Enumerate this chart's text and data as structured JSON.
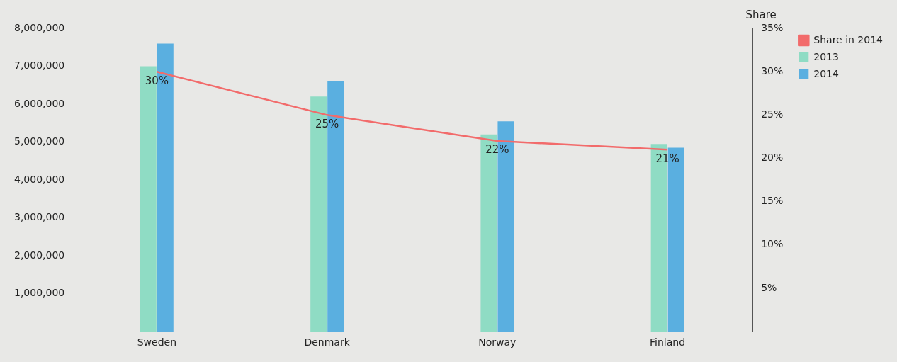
{
  "chart_data": {
    "type": "bar",
    "categories": [
      "Sweden",
      "Denmark",
      "Norway",
      "Finland"
    ],
    "series": [
      {
        "name": "2013",
        "color": "#8fdcc4",
        "values": [
          7000000,
          6200000,
          5200000,
          4950000
        ]
      },
      {
        "name": "2014",
        "color": "#5aafe0",
        "values": [
          7600000,
          6600000,
          5550000,
          4850000
        ]
      },
      {
        "name": "Share in 2014",
        "type": "line",
        "axis": "y2",
        "color": "#f26b6b",
        "values": [
          30,
          25,
          22,
          21
        ],
        "value_labels": [
          "30%",
          "25%",
          "22%",
          "21%"
        ]
      }
    ],
    "y2label": "Share",
    "ylim": [
      0,
      8000000
    ],
    "yticks": [
      {
        "value": 1000000,
        "label": "1,000,000"
      },
      {
        "value": 2000000,
        "label": "2,000,000"
      },
      {
        "value": 3000000,
        "label": "3,000,000"
      },
      {
        "value": 4000000,
        "label": "4,000,000"
      },
      {
        "value": 5000000,
        "label": "5,000,000"
      },
      {
        "value": 6000000,
        "label": "6,000,000"
      },
      {
        "value": 7000000,
        "label": "7,000,000"
      },
      {
        "value": 8000000,
        "label": "8,000,000"
      }
    ],
    "y2lim": [
      0,
      35
    ],
    "y2ticks": [
      {
        "value": 5,
        "label": "5%"
      },
      {
        "value": 10,
        "label": "10%"
      },
      {
        "value": 15,
        "label": "15%"
      },
      {
        "value": 20,
        "label": "20%"
      },
      {
        "value": 25,
        "label": "25%"
      },
      {
        "value": 30,
        "label": "30%"
      },
      {
        "value": 35,
        "label": "35%"
      }
    ],
    "grid": false,
    "legend": "top right",
    "marker": "none"
  }
}
